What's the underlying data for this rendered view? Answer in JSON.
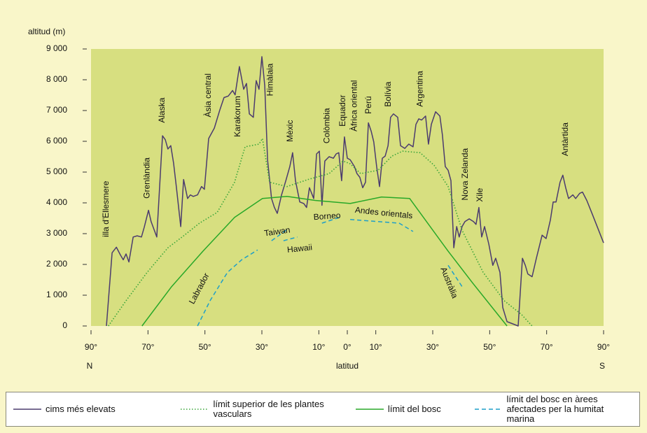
{
  "chart_data": {
    "type": "line",
    "y_label": "altitud (m)",
    "x_label": "latitud",
    "x_direction_labels": [
      "N",
      "S"
    ],
    "xlim": [
      90,
      -90
    ],
    "ylim": [
      0,
      9000
    ],
    "xticks": [
      {
        "value": 90,
        "label": "90°"
      },
      {
        "value": 70,
        "label": "70°"
      },
      {
        "value": 50,
        "label": "50°"
      },
      {
        "value": 30,
        "label": "30°"
      },
      {
        "value": 10,
        "label": "10°"
      },
      {
        "value": 0,
        "label": "0°"
      },
      {
        "value": -10,
        "label": "10°"
      },
      {
        "value": -30,
        "label": "30°"
      },
      {
        "value": -50,
        "label": "50°"
      },
      {
        "value": -70,
        "label": "70°"
      },
      {
        "value": -90,
        "label": "90°"
      }
    ],
    "yticks": [
      0,
      {
        "value": 1000,
        "label": "1 000"
      },
      {
        "value": 2000,
        "label": "2 000"
      },
      {
        "value": 3000,
        "label": "3 000"
      },
      {
        "value": 4000,
        "label": "4 000"
      },
      {
        "value": 5000,
        "label": "5 000"
      },
      {
        "value": 6000,
        "label": "6 000"
      },
      {
        "value": 7000,
        "label": "7 000"
      },
      {
        "value": 8000,
        "label": "8 000"
      },
      {
        "value": 9000,
        "label": "9 000"
      }
    ],
    "series": [
      {
        "name": "cims més elevats",
        "color": "#4b3b6e",
        "style": "solid",
        "x": [
          84.6,
          82.6,
          81.1,
          79.7,
          78.7,
          77.7,
          76.7,
          75.2,
          73.8,
          72.3,
          71.3,
          69.8,
          68.9,
          66.9,
          64.9,
          63.9,
          63.0,
          62.0,
          61.0,
          60.0,
          58.5,
          57.5,
          56.1,
          55.1,
          54.1,
          52.6,
          51.2,
          50.2,
          48.7,
          46.7,
          44.8,
          43.3,
          41.8,
          40.3,
          39.4,
          37.9,
          36.4,
          35.4,
          34.4,
          33.0,
          32.0,
          31.0,
          30.0,
          29.0,
          28.0,
          26.6,
          25.6,
          24.6,
          23.1,
          21.6,
          20.2,
          19.2,
          18.2,
          16.7,
          15.3,
          14.3,
          13.3,
          11.8,
          10.8,
          9.8,
          8.9,
          7.9,
          6.4,
          4.9,
          3.9,
          3.0,
          2.0,
          1.0,
          0.0,
          -1.0,
          -2.5,
          -3.4,
          -4.4,
          -5.4,
          -6.4,
          -7.4,
          -8.4,
          -9.3,
          -10.3,
          -11.3,
          -12.3,
          -13.3,
          -14.3,
          -15.2,
          -16.2,
          -17.7,
          -18.7,
          -20.2,
          -21.6,
          -23.1,
          -24.1,
          -25.1,
          -26.1,
          -27.5,
          -28.5,
          -29.5,
          -31.0,
          -32.5,
          -33.4,
          -34.4,
          -35.4,
          -36.4,
          -37.4,
          -38.4,
          -39.3,
          -40.3,
          -41.3,
          -42.8,
          -44.3,
          -45.2,
          -46.2,
          -47.2,
          -48.2,
          -49.7,
          -51.1,
          -52.1,
          -53.6,
          -54.6,
          -56.1,
          -57.5,
          -60.0,
          -61.5,
          -62.5,
          -63.4,
          -64.9,
          -66.4,
          -68.4,
          -69.8,
          -71.3,
          -72.3,
          -73.3,
          -74.7,
          -75.7,
          -76.7,
          -77.7,
          -79.2,
          -80.2,
          -81.6,
          -82.6,
          -84.1,
          -86.1,
          -90.0
        ],
        "values": [
          0,
          2380,
          2560,
          2310,
          2150,
          2340,
          2080,
          2890,
          2930,
          2890,
          3210,
          3760,
          3390,
          2890,
          6180,
          6050,
          5750,
          5860,
          5290,
          4490,
          3230,
          4760,
          4140,
          4260,
          4210,
          4260,
          4530,
          4440,
          6090,
          6430,
          7010,
          7420,
          7470,
          7650,
          7510,
          8430,
          7690,
          7880,
          6890,
          6780,
          7970,
          7690,
          8750,
          7810,
          5400,
          4140,
          3850,
          3660,
          4260,
          4720,
          5180,
          5630,
          4720,
          4030,
          3980,
          3850,
          4490,
          4140,
          5590,
          5680,
          3920,
          5360,
          5500,
          5450,
          5590,
          5630,
          4720,
          6140,
          5450,
          5400,
          5180,
          4950,
          4830,
          4490,
          4670,
          6600,
          6320,
          5980,
          5180,
          4530,
          5450,
          5520,
          5860,
          6780,
          6890,
          6780,
          5860,
          5770,
          5910,
          5820,
          6550,
          6730,
          6690,
          6820,
          5910,
          6550,
          6960,
          6820,
          6210,
          5180,
          5060,
          4720,
          2540,
          3230,
          2890,
          3230,
          3390,
          3480,
          3390,
          3300,
          3850,
          2890,
          3230,
          2660,
          1970,
          2200,
          1740,
          600,
          140,
          90,
          0,
          2200,
          1970,
          1690,
          1600,
          2200,
          2950,
          2840,
          3440,
          4030,
          4030,
          4670,
          4900,
          4490,
          4140,
          4260,
          4140,
          4310,
          4350,
          4080,
          3620,
          2700
        ]
      },
      {
        "name": "límit superior de les plantes vasculars",
        "color": "#3aa53a",
        "style": "dotted",
        "x": [
          83.9,
          77.7,
          70.3,
          63.0,
          58.0,
          51.9,
          45.7,
          39.6,
          35.9,
          31.0,
          29.8,
          27.3,
          21.2,
          13.8,
          6.4,
          1.5,
          -1.0,
          -4.7,
          -10.8,
          -15.7,
          -19.4,
          -25.6,
          -30.5,
          -35.4,
          -40.3,
          -47.7,
          -55.1,
          -61.2,
          -64.9
        ],
        "values": [
          0,
          820,
          1740,
          2540,
          2890,
          3340,
          3690,
          4670,
          5820,
          5910,
          6090,
          4670,
          4530,
          4760,
          4950,
          5360,
          5270,
          4950,
          5060,
          5520,
          5680,
          5630,
          5220,
          4530,
          3110,
          1740,
          820,
          370,
          0
        ]
      },
      {
        "name": "límit del bosc",
        "color": "#28a828",
        "style": "solid",
        "x": [
          72.1,
          61.7,
          50.7,
          39.6,
          29.8,
          21.2,
          11.3,
          -1.0,
          -12.0,
          -21.9,
          -35.4,
          -44.0,
          -56.1
        ],
        "values": [
          0,
          1280,
          2430,
          3530,
          4140,
          4210,
          4080,
          3980,
          4190,
          4140,
          2430,
          1400,
          0
        ]
      },
      {
        "name": "límit del bosc en àrees afectades per la humitat marina",
        "color": "#1f9fc8",
        "style": "dashed",
        "x": [
          52.6,
          48.2,
          42.1,
          37.1,
          31.5,
          null,
          26.6,
          20.7,
          null,
          22.4,
          17.5,
          null,
          8.9,
          2.7,
          null,
          -1.0,
          -18.2,
          -23.1,
          null,
          -35.4,
          -40.3
        ],
        "values": [
          0,
          820,
          1740,
          2150,
          2470,
          null,
          2770,
          3160,
          null,
          2770,
          2890,
          null,
          3340,
          3530,
          null,
          3460,
          3340,
          3070,
          null,
          1970,
          1280
        ]
      }
    ],
    "annotations": [
      {
        "text": "illa d'Ellesmere",
        "x": 84.6,
        "y": 2890
      },
      {
        "text": "Grenlàndia",
        "x": 70.3,
        "y": 4140
      },
      {
        "text": "Alaska",
        "x": 64.9,
        "y": 6600
      },
      {
        "text": "Àsia central",
        "x": 48.7,
        "y": 6780
      },
      {
        "text": "Karakorum",
        "x": 38.4,
        "y": 6140
      },
      {
        "text": "Himàlaia",
        "x": 27.0,
        "y": 7470
      },
      {
        "text": "Mèxic",
        "x": 20.0,
        "y": 5980
      },
      {
        "text": "Colòmbia",
        "x": 7.1,
        "y": 5930
      },
      {
        "text": "Equador",
        "x": 1.5,
        "y": 6480
      },
      {
        "text": "Àfrica oriental",
        "x": -2.5,
        "y": 6320
      },
      {
        "text": "Perú",
        "x": -7.6,
        "y": 6890
      },
      {
        "text": "Bolívia",
        "x": -14.5,
        "y": 7120
      },
      {
        "text": "Argentina",
        "x": -25.6,
        "y": 7120
      },
      {
        "text": "Nova Zelanda",
        "x": -41.5,
        "y": 4080
      },
      {
        "text": "Xile",
        "x": -46.7,
        "y": 4030
      },
      {
        "text": "Antàrtida",
        "x": -76.7,
        "y": 5520
      },
      {
        "text": "Taiwan",
        "x": 24.6,
        "y": 3050
      },
      {
        "text": "Hawaii",
        "x": 16.7,
        "y": 2500
      },
      {
        "text": "Borneo",
        "x": 7.1,
        "y": 3550
      },
      {
        "text": "Andes orientals",
        "x": -12.8,
        "y": 3660
      },
      {
        "text": "Labrador",
        "x": 51.9,
        "y": 1210
      },
      {
        "text": "Austràlia",
        "x": -35.6,
        "y": 1400
      }
    ]
  }
}
